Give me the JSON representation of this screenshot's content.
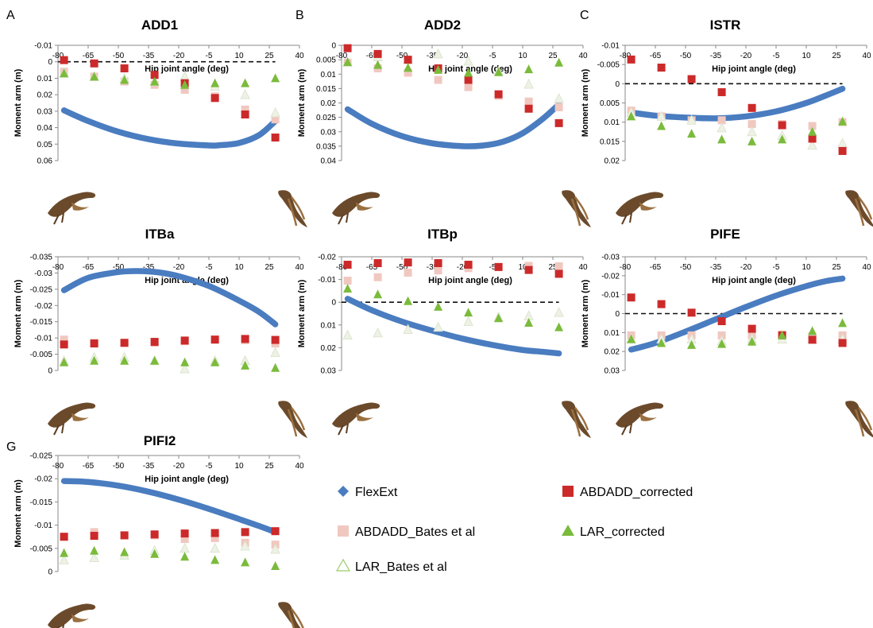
{
  "legend": {
    "items": [
      {
        "key": "FlexExt",
        "label": "FlexExt",
        "marker": "diamond",
        "color": "#4a7cc0"
      },
      {
        "key": "ABDADD_corrected",
        "label": "ABDADD_corrected",
        "marker": "square",
        "color": "#cc2a2a"
      },
      {
        "key": "ABDADD_Bates",
        "label": "ABDADD_Bates et al",
        "marker": "square",
        "color": "#f0c8c0"
      },
      {
        "key": "LAR_corrected",
        "label": "LAR_corrected",
        "marker": "triangle",
        "color": "#7bbb3c"
      },
      {
        "key": "LAR_Bates",
        "label": "LAR_Bates et al",
        "marker": "triangle-open",
        "color": "#9acb6a"
      }
    ]
  },
  "chart_data": [
    {
      "panel": "A",
      "type": "scatter",
      "title": "ADD1",
      "xlabel": "Hip joint angle (deg)",
      "ylabel": "Moment arm (m)",
      "xlim": [
        -80,
        40
      ],
      "ylim": [
        -0.01,
        0.06
      ],
      "xticks": [
        "-80",
        "-65",
        "-50",
        "-35",
        "-20",
        "-5",
        "10",
        "25",
        "40"
      ],
      "yticks": [
        "-0.01",
        "0",
        "0.01",
        "0.02",
        "0.03",
        "0.04",
        "0.05",
        "0.06"
      ],
      "x": [
        -77,
        -62,
        -47,
        -32,
        -17,
        -2,
        13,
        28
      ],
      "series": [
        {
          "name": "FlexExt",
          "kind": "curve",
          "x": [
            -77,
            -65,
            -50,
            -35,
            -20,
            -5,
            0,
            10,
            20,
            28
          ],
          "values": [
            0.0295,
            0.036,
            0.0425,
            0.047,
            0.0497,
            0.0508,
            0.0507,
            0.0493,
            0.0445,
            0.036
          ]
        },
        {
          "name": "ABDADD_Bates et al",
          "values": [
            0.006,
            0.009,
            0.012,
            0.014,
            0.017,
            0.021,
            0.029,
            0.035
          ]
        },
        {
          "name": "LAR_Bates et al",
          "values": [
            0.007,
            0.009,
            0.01,
            0.012,
            0.009,
            0.015,
            0.02,
            0.031
          ]
        },
        {
          "name": "ABDADD_corrected",
          "values": [
            -0.001,
            0.001,
            0.004,
            0.008,
            0.013,
            0.022,
            0.032,
            0.046
          ]
        },
        {
          "name": "LAR_corrected",
          "values": [
            0.007,
            0.009,
            0.011,
            0.012,
            0.014,
            0.013,
            0.013,
            0.01
          ]
        }
      ]
    },
    {
      "panel": "B",
      "type": "scatter",
      "title": "ADD2",
      "xlabel": "Hip joint angle (deg)",
      "ylabel": "Moment arm (m)",
      "xlim": [
        -80,
        40
      ],
      "ylim": [
        0,
        0.04
      ],
      "xticks": [
        "-80",
        "-65",
        "-50",
        "-35",
        "-20",
        "-5",
        "10",
        "25",
        "40"
      ],
      "yticks": [
        "0",
        "0.005",
        "0.01",
        "0.015",
        "0.02",
        "0.025",
        "0.03",
        "0.035",
        "0.04"
      ],
      "x": [
        -77,
        -62,
        -47,
        -32,
        -17,
        -2,
        13,
        28
      ],
      "series": [
        {
          "name": "FlexExt",
          "kind": "curve",
          "x": [
            -77,
            -65,
            -50,
            -35,
            -20,
            -10,
            0,
            10,
            20,
            28
          ],
          "values": [
            0.0222,
            0.0272,
            0.0315,
            0.034,
            0.035,
            0.0348,
            0.0335,
            0.0305,
            0.0255,
            0.0205
          ]
        },
        {
          "name": "ABDADD_Bates et al",
          "values": [
            0.006,
            0.008,
            0.0095,
            0.012,
            0.0145,
            0.0175,
            0.0195,
            0.0215
          ]
        },
        {
          "name": "LAR_Bates et al",
          "values": [
            0.006,
            0.004,
            0.005,
            0.003,
            0.0055,
            0.009,
            0.0135,
            0.0185
          ]
        },
        {
          "name": "ABDADD_corrected",
          "values": [
            0.001,
            0.003,
            0.005,
            0.008,
            0.012,
            0.017,
            0.022,
            0.027
          ]
        },
        {
          "name": "LAR_corrected",
          "values": [
            0.0058,
            0.0068,
            0.0078,
            0.0085,
            0.0095,
            0.0093,
            0.0083,
            0.006
          ]
        }
      ]
    },
    {
      "panel": "C",
      "type": "scatter",
      "title": "ISTR",
      "xlabel": "Hip joint angle (deg)",
      "ylabel": "Moment arm (m)",
      "xlim": [
        -80,
        40
      ],
      "ylim": [
        -0.01,
        0.02
      ],
      "xticks": [
        "-80",
        "-65",
        "-50",
        "-35",
        "-20",
        "-5",
        "10",
        "25",
        "40"
      ],
      "yticks": [
        "-0.01",
        "-0.005",
        "0",
        "0.005",
        "0.01",
        "0.015",
        "0.02"
      ],
      "x": [
        -77,
        -62,
        -47,
        -32,
        -17,
        -2,
        13,
        28
      ],
      "series": [
        {
          "name": "FlexExt",
          "kind": "curve",
          "x": [
            -77,
            -65,
            -50,
            -35,
            -20,
            -5,
            10,
            20,
            28
          ],
          "values": [
            0.0075,
            0.0083,
            0.0088,
            0.009,
            0.0085,
            0.0072,
            0.005,
            0.003,
            0.0013
          ]
        },
        {
          "name": "ABDADD_Bates et al",
          "values": [
            0.007,
            0.0085,
            0.0095,
            0.0095,
            0.0105,
            0.0105,
            0.011,
            0.01
          ]
        },
        {
          "name": "LAR_Bates et al",
          "values": [
            0.0075,
            0.0085,
            0.0095,
            0.0115,
            0.0125,
            0.0135,
            0.016,
            0.0155
          ]
        },
        {
          "name": "ABDADD_corrected",
          "values": [
            -0.0063,
            -0.0042,
            -0.0012,
            0.0022,
            0.0063,
            0.0108,
            0.0143,
            0.0175
          ]
        },
        {
          "name": "LAR_corrected",
          "values": [
            0.0085,
            0.011,
            0.013,
            0.0145,
            0.015,
            0.0145,
            0.0125,
            0.0098
          ]
        }
      ]
    },
    {
      "panel": "D",
      "type": "scatter",
      "title": "ITBa",
      "xlabel": "Hip joint angle (deg)",
      "ylabel": "Moment arm (m)",
      "xlim": [
        -80,
        40
      ],
      "ylim": [
        -0.035,
        0
      ],
      "xticks": [
        "-80",
        "-65",
        "-50",
        "-35",
        "-20",
        "-5",
        "10",
        "25",
        "40"
      ],
      "yticks": [
        "-0.035",
        "-0.03",
        "-0.025",
        "-0.02",
        "-0.015",
        "-0.01",
        "-0.005",
        "0"
      ],
      "x": [
        -77,
        -62,
        -47,
        -32,
        -17,
        -2,
        13,
        28
      ],
      "series": [
        {
          "name": "FlexExt",
          "kind": "curve",
          "x": [
            -77,
            -65,
            -50,
            -40,
            -30,
            -20,
            -5,
            10,
            20,
            28
          ],
          "values": [
            -0.0247,
            -0.0285,
            -0.0303,
            -0.0306,
            -0.0302,
            -0.029,
            -0.026,
            -0.0215,
            -0.018,
            -0.0142
          ]
        },
        {
          "name": "ABDADD_Bates et al",
          "values": [
            -0.0095,
            -0.0085,
            -0.0085,
            -0.0085,
            -0.009,
            -0.0095,
            -0.0093,
            -0.0083
          ]
        },
        {
          "name": "LAR_Bates et al",
          "values": [
            -0.003,
            -0.004,
            -0.004,
            -0.003,
            -0.0005,
            -0.003,
            -0.003,
            -0.0055
          ]
        },
        {
          "name": "ABDADD_corrected",
          "values": [
            -0.008,
            -0.0083,
            -0.0085,
            -0.0088,
            -0.0092,
            -0.0095,
            -0.0097,
            -0.0094
          ]
        },
        {
          "name": "LAR_corrected",
          "values": [
            -0.0025,
            -0.003,
            -0.003,
            -0.003,
            -0.0025,
            -0.0025,
            -0.0015,
            -0.0008
          ]
        }
      ]
    },
    {
      "panel": "E",
      "type": "scatter",
      "title": "ITBp",
      "xlabel": "Hip joint angle (deg)",
      "ylabel": "Moment arm (m)",
      "xlim": [
        -80,
        40
      ],
      "ylim": [
        -0.02,
        0.03
      ],
      "xticks": [
        "-80",
        "-65",
        "-50",
        "-35",
        "-20",
        "-5",
        "10",
        "25",
        "40"
      ],
      "yticks": [
        "-0.02",
        "-0.01",
        "0",
        "0.01",
        "0.02",
        "0.03"
      ],
      "x": [
        -77,
        -62,
        -47,
        -32,
        -17,
        -2,
        13,
        28
      ],
      "series": [
        {
          "name": "FlexExt",
          "kind": "curve",
          "x": [
            -77,
            -65,
            -50,
            -35,
            -20,
            -5,
            10,
            20,
            28
          ],
          "values": [
            -0.0015,
            0.0035,
            0.0085,
            0.0125,
            0.016,
            0.0188,
            0.021,
            0.0218,
            0.0225
          ]
        },
        {
          "name": "ABDADD_Bates et al",
          "values": [
            -0.0095,
            -0.011,
            -0.013,
            -0.014,
            -0.015,
            -0.0155,
            -0.016,
            -0.0158
          ]
        },
        {
          "name": "LAR_Bates et al",
          "values": [
            0.0145,
            0.0135,
            0.012,
            0.011,
            0.0085,
            0.0065,
            0.006,
            0.0045
          ]
        },
        {
          "name": "ABDADD_corrected",
          "values": [
            -0.0165,
            -0.0172,
            -0.0175,
            -0.0172,
            -0.0165,
            -0.0155,
            -0.0142,
            -0.0125
          ]
        },
        {
          "name": "LAR_corrected",
          "values": [
            -0.006,
            -0.0035,
            -0.0005,
            0.002,
            0.0045,
            0.007,
            0.009,
            0.011
          ]
        }
      ]
    },
    {
      "panel": "F",
      "type": "scatter",
      "title": "PIFE",
      "xlabel": "Hip joint angle (deg)",
      "ylabel": "Moment arm (m)",
      "xlim": [
        -80,
        40
      ],
      "ylim": [
        -0.03,
        0.03
      ],
      "xticks": [
        "-80",
        "-65",
        "-50",
        "-35",
        "-20",
        "-5",
        "10",
        "25",
        "40"
      ],
      "yticks": [
        "-0.03",
        "-0.02",
        "-0.01",
        "0",
        "0.01",
        "0.02",
        "0.03"
      ],
      "x": [
        -77,
        -62,
        -47,
        -32,
        -17,
        -2,
        13,
        28
      ],
      "series": [
        {
          "name": "FlexExt",
          "kind": "curve",
          "x": [
            -77,
            -65,
            -50,
            -35,
            -20,
            -5,
            10,
            20,
            28
          ],
          "values": [
            0.019,
            0.0155,
            0.0095,
            0.003,
            -0.0035,
            -0.0095,
            -0.0145,
            -0.0172,
            -0.0185
          ]
        },
        {
          "name": "ABDADD_Bates et al",
          "values": [
            0.0115,
            0.0115,
            0.0115,
            0.0115,
            0.0115,
            0.011,
            0.012,
            0.0115
          ]
        },
        {
          "name": "LAR_Bates et al",
          "values": [
            0.0135,
            0.0135,
            0.0135,
            0.0145,
            0.0135,
            0.0135,
            0.0135,
            0.0135
          ]
        },
        {
          "name": "ABDADD_corrected",
          "values": [
            -0.0085,
            -0.005,
            -0.0005,
            0.004,
            0.008,
            0.0115,
            0.0138,
            0.0155
          ]
        },
        {
          "name": "LAR_corrected",
          "values": [
            0.0135,
            0.0155,
            0.0165,
            0.016,
            0.0148,
            0.0115,
            0.0092,
            0.005
          ]
        }
      ]
    },
    {
      "panel": "G",
      "type": "scatter",
      "title": "PIFI2",
      "xlabel": "Hip joint angle (deg)",
      "ylabel": "Moment arm (m)",
      "xlim": [
        -80,
        40
      ],
      "ylim": [
        -0.025,
        0
      ],
      "xticks": [
        "-80",
        "-65",
        "-50",
        "-35",
        "-20",
        "-5",
        "10",
        "25",
        "40"
      ],
      "yticks": [
        "-0.025",
        "-0.02",
        "-0.015",
        "-0.01",
        "-0.005",
        "0"
      ],
      "x": [
        -77,
        -62,
        -47,
        -32,
        -17,
        -2,
        13,
        28
      ],
      "series": [
        {
          "name": "FlexExt",
          "kind": "curve",
          "x": [
            -77,
            -65,
            -50,
            -35,
            -20,
            -5,
            10,
            20,
            28
          ],
          "values": [
            -0.0195,
            -0.0193,
            -0.0185,
            -0.0172,
            -0.0155,
            -0.0135,
            -0.0113,
            -0.0098,
            -0.0085
          ]
        },
        {
          "name": "ABDADD_Bates et al",
          "values": [
            -0.0075,
            -0.0085,
            -0.0078,
            -0.0078,
            -0.007,
            -0.0072,
            -0.0062,
            -0.0058
          ]
        },
        {
          "name": "LAR_Bates et al",
          "values": [
            -0.0025,
            -0.003,
            -0.0035,
            -0.0045,
            -0.005,
            -0.005,
            -0.0055,
            -0.0048
          ]
        },
        {
          "name": "ABDADD_corrected",
          "values": [
            -0.0075,
            -0.0077,
            -0.0078,
            -0.008,
            -0.0082,
            -0.0083,
            -0.0085,
            -0.0087
          ]
        },
        {
          "name": "LAR_corrected",
          "values": [
            -0.004,
            -0.0045,
            -0.0042,
            -0.0038,
            -0.0032,
            -0.0025,
            -0.002,
            -0.0012
          ]
        }
      ]
    }
  ]
}
